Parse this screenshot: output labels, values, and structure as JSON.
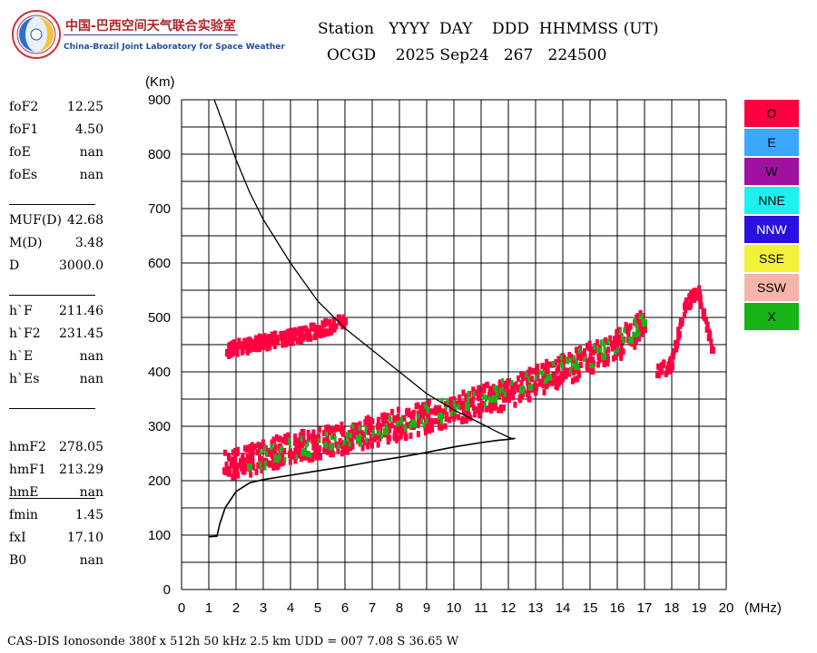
{
  "logo": {
    "cn": "中国-巴西空间天气联合实验室",
    "en": "China-Brazil Joint Laboratory for Space Weather"
  },
  "header": {
    "line1": "Station   YYYY  DAY    DDD  HHMMSS (UT)",
    "line2": "OCGD    2025 Sep24   267   224500"
  },
  "params": [
    {
      "name": "foF2",
      "value": "12.25"
    },
    {
      "name": "foF1",
      "value": "4.50"
    },
    {
      "name": "foE",
      "value": "nan"
    },
    {
      "name": "foEs",
      "value": "nan"
    },
    {
      "name": "MUF(D)",
      "value": "42.68"
    },
    {
      "name": "M(D)",
      "value": "3.48"
    },
    {
      "name": "D",
      "value": "3000.0"
    },
    {
      "name": "h`F",
      "value": "211.46"
    },
    {
      "name": "h`F2",
      "value": "231.45"
    },
    {
      "name": "h`E",
      "value": "nan"
    },
    {
      "name": "h`Es",
      "value": "nan"
    },
    {
      "name": "hmF2",
      "value": "278.05"
    },
    {
      "name": "hmF1",
      "value": "213.29"
    },
    {
      "name": "hmE",
      "value": "nan"
    },
    {
      "name": "fmin",
      "value": "1.45"
    },
    {
      "name": "fxI",
      "value": "17.10"
    },
    {
      "name": "B0",
      "value": "nan"
    }
  ],
  "legend": [
    {
      "label": "O",
      "color": "#ff0040"
    },
    {
      "label": "E",
      "color": "#3aa8ff"
    },
    {
      "label": "W",
      "color": "#a0109e"
    },
    {
      "label": "NNE",
      "color": "#1ef0f0"
    },
    {
      "label": "NNW",
      "color": "#2a10e0"
    },
    {
      "label": "SSE",
      "color": "#f2f23a"
    },
    {
      "label": "SSW",
      "color": "#f7b4a8"
    },
    {
      "label": "X",
      "color": "#17b417"
    }
  ],
  "footer": "CAS-DIS Ionosonde 380f x 512h 50 kHz 2.5 km UDD = 007 7.08 S 36.65 W",
  "chart_data": {
    "type": "scatter",
    "title": "",
    "xlabel": "(MHz)",
    "ylabel": "(Km)",
    "xlim": [
      0,
      20
    ],
    "ylim": [
      0,
      900
    ],
    "xticks": [
      "0",
      "1",
      "2",
      "3",
      "4",
      "5",
      "6",
      "7",
      "8",
      "9",
      "10",
      "11",
      "12",
      "13",
      "14",
      "15",
      "16",
      "17",
      "18",
      "19",
      "20"
    ],
    "yticks": [
      "0",
      "100",
      "200",
      "300",
      "400",
      "500",
      "600",
      "700",
      "800",
      "900"
    ],
    "grid": true,
    "series": [
      {
        "name": "O-mode F-layer trace (lower)",
        "color": "#ff0040",
        "x": [
          1.6,
          2.0,
          2.5,
          3.0,
          3.5,
          4.0,
          4.5,
          5.0,
          5.5,
          6.0,
          6.5,
          7.0,
          7.5,
          8.0,
          8.5,
          9.0,
          9.5,
          10.0,
          10.5,
          11.0,
          11.5,
          12.0,
          12.5,
          13.0,
          13.5,
          14.0,
          14.5,
          15.0,
          15.5,
          16.0,
          16.5,
          17.0
        ],
        "y": [
          218,
          222,
          228,
          235,
          242,
          248,
          253,
          258,
          263,
          268,
          274,
          280,
          286,
          293,
          300,
          306,
          313,
          320,
          328,
          336,
          343,
          350,
          360,
          372,
          383,
          393,
          403,
          415,
          425,
          438,
          455,
          478
        ]
      },
      {
        "name": "O-mode F-layer multiple echo (upper)",
        "color": "#ff0040",
        "x": [
          1.7,
          2.0,
          2.5,
          3.0,
          3.5,
          4.0,
          4.5,
          5.0,
          5.5,
          6.0
        ],
        "y": [
          435,
          440,
          445,
          450,
          455,
          460,
          465,
          472,
          480,
          492
        ]
      },
      {
        "name": "X-mode echoes",
        "color": "#17b417",
        "x": [
          2.5,
          3.5,
          4.5,
          5.5,
          6.5,
          7.5,
          8.5,
          9.5,
          10.5,
          11.5,
          12.5,
          13.5,
          14.5,
          15.5,
          16.5,
          17.0
        ],
        "y": [
          225,
          240,
          252,
          262,
          278,
          290,
          305,
          318,
          335,
          350,
          368,
          390,
          410,
          428,
          458,
          490
        ]
      },
      {
        "name": "Scattered high echoes",
        "color": "#ff0040",
        "x": [
          17.5,
          18.0,
          18.5,
          19.0,
          19.5
        ],
        "y": [
          395,
          410,
          520,
          540,
          440
        ]
      }
    ],
    "profile": {
      "name": "Electron density profile",
      "x": [
        1.0,
        1.3,
        1.4,
        1.6,
        2.0,
        2.5,
        3.0,
        4.0,
        5.0,
        6.0,
        7.0,
        8.0,
        9.0,
        10.0,
        11.0,
        11.6,
        12.0,
        12.25
      ],
      "y": [
        97,
        98,
        120,
        150,
        180,
        196,
        202,
        210,
        218,
        226,
        235,
        243,
        252,
        262,
        270,
        274,
        276,
        278
      ]
    },
    "virtual_height_curve": {
      "name": "Reference curve",
      "x": [
        1.2,
        1.5,
        2.0,
        2.5,
        3.0,
        4.0,
        5.0,
        6.0,
        7.0,
        8.0,
        9.0,
        10.0,
        11.0,
        11.5,
        12.0,
        12.2
      ],
      "y": [
        900,
        860,
        790,
        730,
        680,
        600,
        530,
        480,
        440,
        400,
        360,
        330,
        305,
        292,
        280,
        276
      ]
    }
  }
}
